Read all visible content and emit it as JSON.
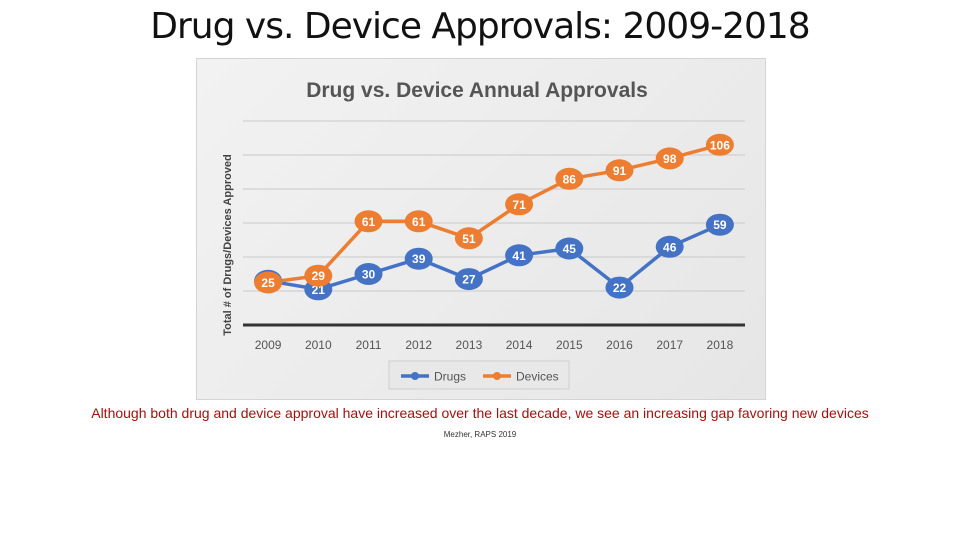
{
  "slide": {
    "title": "Drug vs. Device Approvals: 2009-2018",
    "caption": "Although both drug and device approval have increased over the last decade, we see an increasing gap favoring new devices",
    "source": "Mezher, RAPS 2019"
  },
  "chart_data": {
    "type": "line",
    "title": "Drug vs. Device Annual Approvals",
    "xlabel": "",
    "ylabel": "Total # of Drugs/Devices Approved",
    "x": [
      "2009",
      "2010",
      "2011",
      "2012",
      "2013",
      "2014",
      "2015",
      "2016",
      "2017",
      "2018"
    ],
    "ylim": [
      0,
      120
    ],
    "grid": true,
    "legend_position": "bottom",
    "series": [
      {
        "name": "Drugs",
        "color": "#4472c4",
        "values": [
          26,
          21,
          30,
          39,
          27,
          41,
          45,
          22,
          46,
          59
        ]
      },
      {
        "name": "Devices",
        "color": "#ed7d31",
        "values": [
          25,
          29,
          61,
          61,
          51,
          71,
          86,
          91,
          98,
          106
        ]
      }
    ]
  }
}
